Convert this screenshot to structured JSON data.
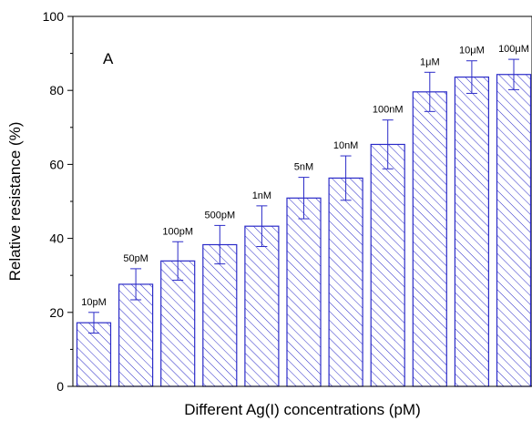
{
  "chart_data": {
    "type": "bar",
    "panel_label": "A",
    "xlabel": "Different Ag(I) concentrations (pM)",
    "ylabel": "Relative resistance (%)",
    "ylim": [
      0,
      100
    ],
    "yticks": [
      "0",
      "20",
      "40",
      "60",
      "80",
      "100"
    ],
    "grid": false,
    "legend": "none",
    "bar_color": "#2b2bc8",
    "bar_fill": "diagonal-hatch",
    "categories": [
      "10pM",
      "50pM",
      "100pM",
      "500pM",
      "1nM",
      "5nM",
      "10nM",
      "100nM",
      "1μM",
      "10μM",
      "100μM"
    ],
    "values": [
      17.2,
      27.6,
      33.9,
      38.3,
      43.3,
      50.9,
      56.3,
      65.4,
      79.6,
      83.6,
      84.3
    ],
    "errors": [
      2.8,
      4.2,
      5.2,
      5.2,
      5.5,
      5.6,
      6.0,
      6.6,
      5.3,
      4.4,
      4.1
    ]
  }
}
